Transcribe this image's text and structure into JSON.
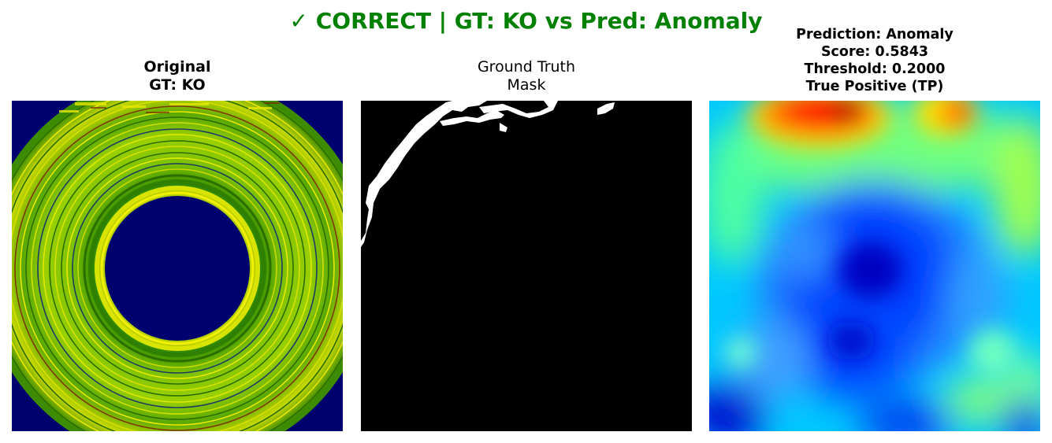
{
  "figure": {
    "title": "✓ CORRECT | GT: KO vs Pred: Anomaly",
    "title_color": "#008000"
  },
  "panels": [
    {
      "title_line1": "Original",
      "title_line2": "GT: KO",
      "content": "grayscale-bearing-image-false-colored"
    },
    {
      "title_line1": "Ground Truth",
      "title_line2": "Mask",
      "content": "binary-defect-mask"
    },
    {
      "title_line1": "Prediction: Anomaly",
      "title_line2": "Score: 0.5843",
      "title_line3": "Threshold: 0.2000",
      "title_line4": "True Positive (TP)",
      "content": "anomaly-heatmap-jet"
    }
  ],
  "colors": {
    "background_navy": "#00006f",
    "mask_background": "#000000",
    "mask_defect": "#ffffff"
  }
}
